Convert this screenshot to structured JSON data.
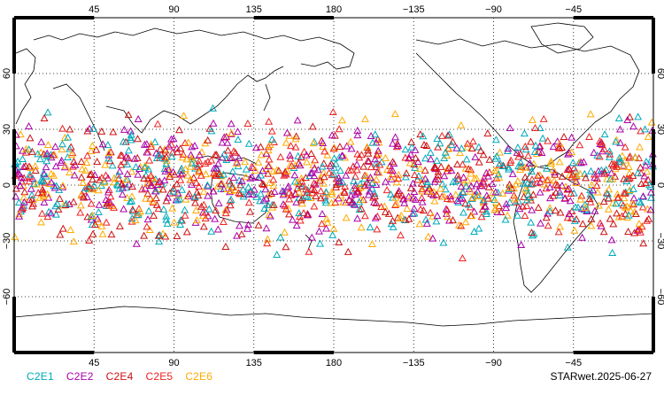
{
  "map": {
    "lon_labels": [
      "45",
      "90",
      "135",
      "180",
      "−135",
      "−90",
      "−45"
    ],
    "lon_values": [
      45,
      90,
      135,
      180,
      225,
      270,
      315
    ],
    "lat_labels": [
      "60",
      "30",
      "0",
      "−30",
      "−60"
    ],
    "lat_values": [
      60,
      30,
      0,
      -30,
      -60
    ],
    "lon_range": [
      0,
      360
    ],
    "lat_range": [
      -90,
      90
    ],
    "grid": "dotted",
    "colors": {
      "land": "#000000",
      "frame": "#000000",
      "grid": "#000000"
    }
  },
  "legend": [
    {
      "label": "C2E1",
      "color": "#00aabb"
    },
    {
      "label": "C2E2",
      "color": "#aa00aa"
    },
    {
      "label": "C2E4",
      "color": "#cc1111"
    },
    {
      "label": "C2E5",
      "color": "#ee2222"
    },
    {
      "label": "C2E6",
      "color": "#ffaa00"
    }
  ],
  "observations": {
    "marker": "open-triangle",
    "lat_band": [
      -42,
      46
    ],
    "lon_range": [
      0,
      360
    ]
  },
  "stamp": "STARwet.2025-06-27"
}
